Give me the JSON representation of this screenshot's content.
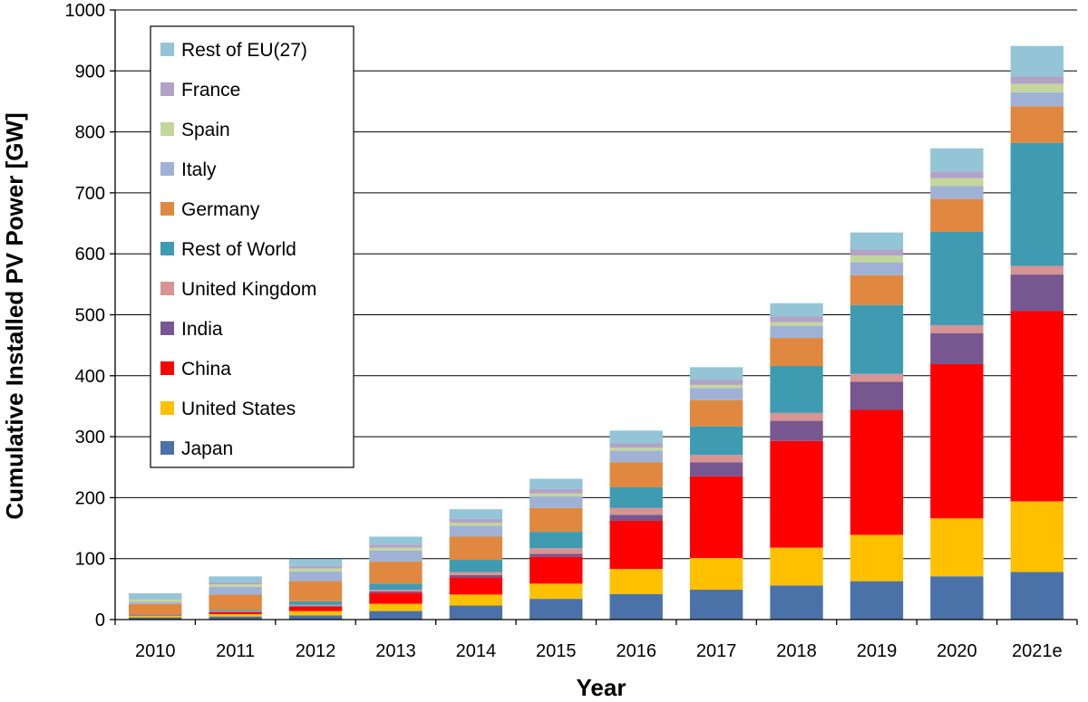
{
  "chart_data": {
    "type": "bar",
    "stacked": true,
    "title": "",
    "xlabel": "Year",
    "ylabel": "Cumulative Installed PV Power [GW]",
    "ylim": [
      0,
      1000
    ],
    "yticks": [
      0,
      100,
      200,
      300,
      400,
      500,
      600,
      700,
      800,
      900,
      1000
    ],
    "grid": true,
    "legend_position": "top-left",
    "categories": [
      "2010",
      "2011",
      "2012",
      "2013",
      "2014",
      "2015",
      "2016",
      "2017",
      "2018",
      "2019",
      "2020",
      "2021e"
    ],
    "series": [
      {
        "name": "Japan",
        "color": "#4a72a8",
        "values": [
          3.6,
          5,
          7,
          14,
          23,
          34,
          42,
          49,
          56,
          63,
          71,
          78
        ]
      },
      {
        "name": "United States",
        "color": "#ffc000",
        "values": [
          2.5,
          4,
          7,
          12,
          18,
          25,
          41,
          52,
          62,
          76,
          95,
          116
        ]
      },
      {
        "name": "China",
        "color": "#ff0000",
        "values": [
          0.8,
          3,
          7,
          18,
          28,
          44,
          79,
          134,
          175,
          205,
          253,
          312
        ]
      },
      {
        "name": "India",
        "color": "#76578f",
        "values": [
          0.2,
          1,
          1.3,
          2.5,
          4,
          5,
          10,
          23,
          33,
          46,
          51,
          60
        ]
      },
      {
        "name": "United Kingdom",
        "color": "#d79493",
        "values": [
          0.1,
          1,
          1.8,
          2.5,
          5,
          9,
          11,
          12,
          13,
          13,
          13,
          14
        ]
      },
      {
        "name": "Rest of World",
        "color": "#3f9bb2",
        "values": [
          1.4,
          1.8,
          5.9,
          10,
          20,
          27,
          34,
          47,
          77,
          113,
          153,
          202
        ]
      },
      {
        "name": "Germany",
        "color": "#e0883f",
        "values": [
          17,
          25,
          33,
          36,
          38,
          39,
          41,
          43,
          46,
          49,
          54,
          60
        ]
      },
      {
        "name": "Italy",
        "color": "#9fb2d6",
        "values": [
          3.5,
          13,
          16,
          18,
          18,
          19,
          19,
          20,
          20,
          21,
          21,
          23
        ]
      },
      {
        "name": "Spain",
        "color": "#c3d69b",
        "values": [
          4,
          4,
          5,
          5,
          5,
          5,
          5,
          5,
          6,
          11,
          13,
          14
        ]
      },
      {
        "name": "France",
        "color": "#b3a2c7",
        "values": [
          1,
          3,
          4,
          5,
          6,
          7,
          7,
          8,
          9,
          10,
          11,
          12
        ]
      },
      {
        "name": "Rest of EU(27)",
        "color": "#93c5d6",
        "values": [
          9,
          10,
          11,
          13,
          16,
          17,
          21,
          21,
          22,
          28,
          38,
          50
        ]
      }
    ]
  }
}
